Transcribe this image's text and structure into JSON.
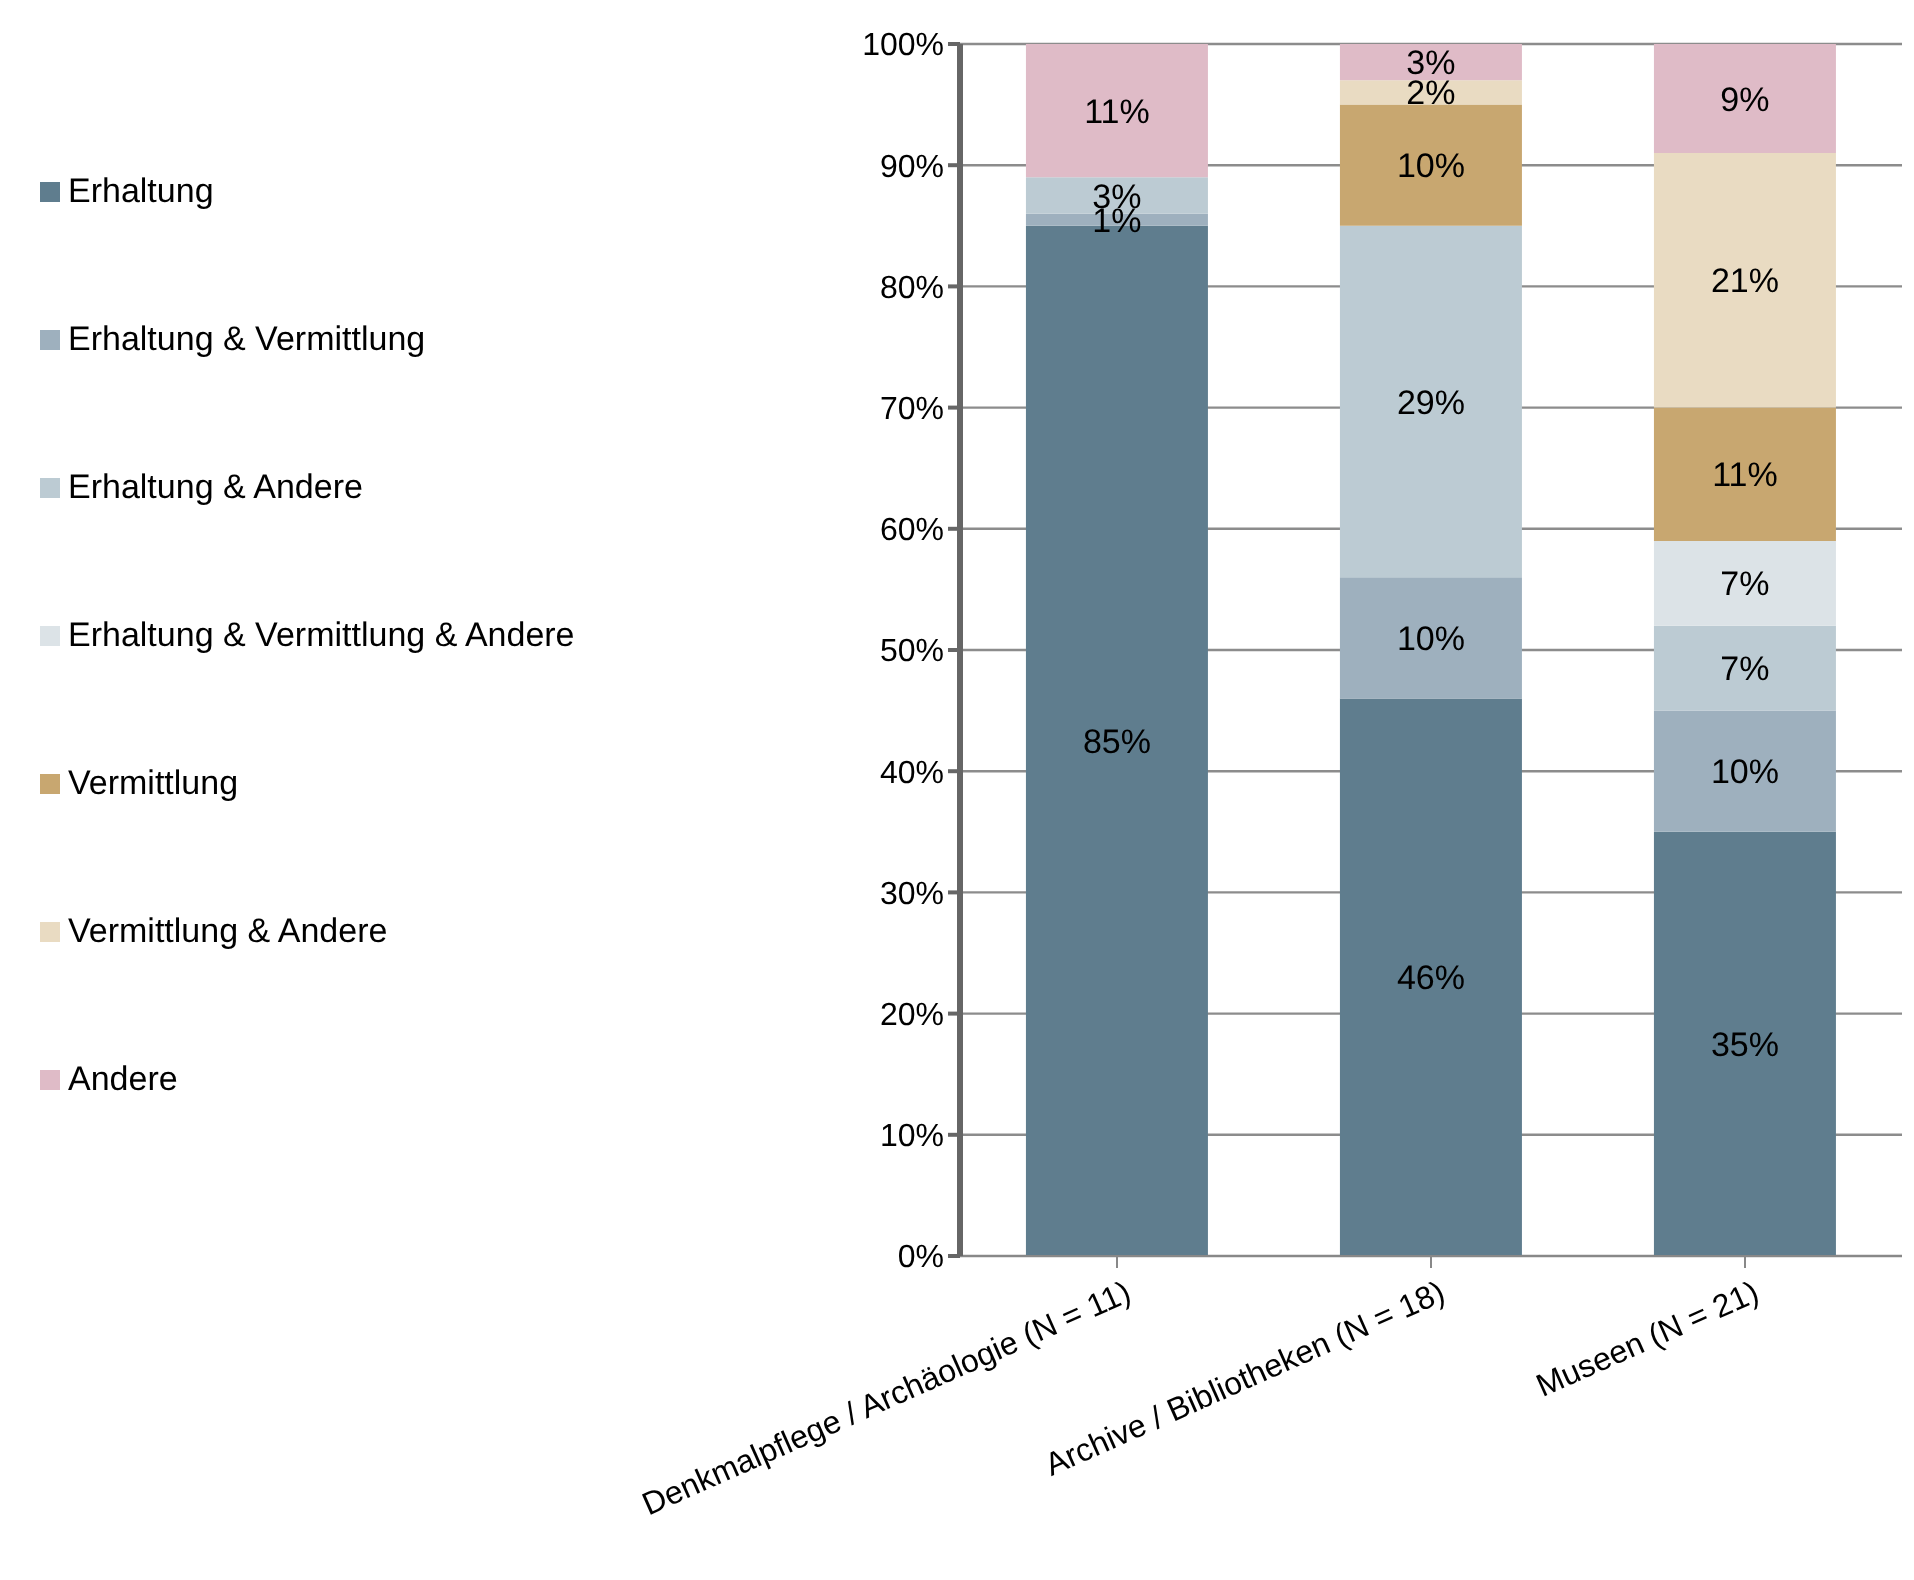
{
  "chart_data": {
    "type": "bar",
    "stacked": true,
    "categories": [
      "Denkmalpflege / Archäologie (N = 11)",
      "Archive / Bibliotheken (N = 18)",
      "Museen (N = 21)"
    ],
    "series": [
      {
        "name": "Erhaltung",
        "color": "#5f7d8e",
        "values": [
          85,
          46,
          35
        ],
        "value_labels": [
          "85%",
          "46%",
          "35%"
        ]
      },
      {
        "name": "Erhaltung & Vermittlung",
        "color": "#9eb0be",
        "values": [
          1,
          10,
          10
        ],
        "value_labels": [
          "1%",
          "10%",
          "10%"
        ]
      },
      {
        "name": "Erhaltung & Andere",
        "color": "#bccbd3",
        "values": [
          3,
          29,
          7
        ],
        "value_labels": [
          "3%",
          "29%",
          "7%"
        ]
      },
      {
        "name": "Erhaltung & Vermittlung & Andere",
        "color": "#dce3e7",
        "values": [
          0,
          0,
          7
        ],
        "value_labels": [
          null,
          null,
          "7%"
        ]
      },
      {
        "name": "Vermittlung",
        "color": "#c8a770",
        "values": [
          0,
          10,
          11
        ],
        "value_labels": [
          null,
          "10%",
          "11%"
        ]
      },
      {
        "name": "Vermittlung & Andere",
        "color": "#e9dbc2",
        "values": [
          0,
          2,
          21
        ],
        "value_labels": [
          null,
          "2%",
          "21%"
        ]
      },
      {
        "name": "Andere",
        "color": "#dfbbc7",
        "values": [
          11,
          3,
          9
        ],
        "value_labels": [
          "11%",
          "3%",
          "9%"
        ]
      }
    ],
    "ylim": [
      0,
      100
    ],
    "yticks": [
      {
        "value": 0,
        "label": "0%"
      },
      {
        "value": 10,
        "label": "10%"
      },
      {
        "value": 20,
        "label": "20%"
      },
      {
        "value": 30,
        "label": "30%"
      },
      {
        "value": 40,
        "label": "40%"
      },
      {
        "value": 50,
        "label": "50%"
      },
      {
        "value": 60,
        "label": "60%"
      },
      {
        "value": 70,
        "label": "70%"
      },
      {
        "value": 80,
        "label": "80%"
      },
      {
        "value": 90,
        "label": "90%"
      },
      {
        "value": 100,
        "label": "100%"
      }
    ],
    "grid": "y",
    "legend": "left"
  }
}
